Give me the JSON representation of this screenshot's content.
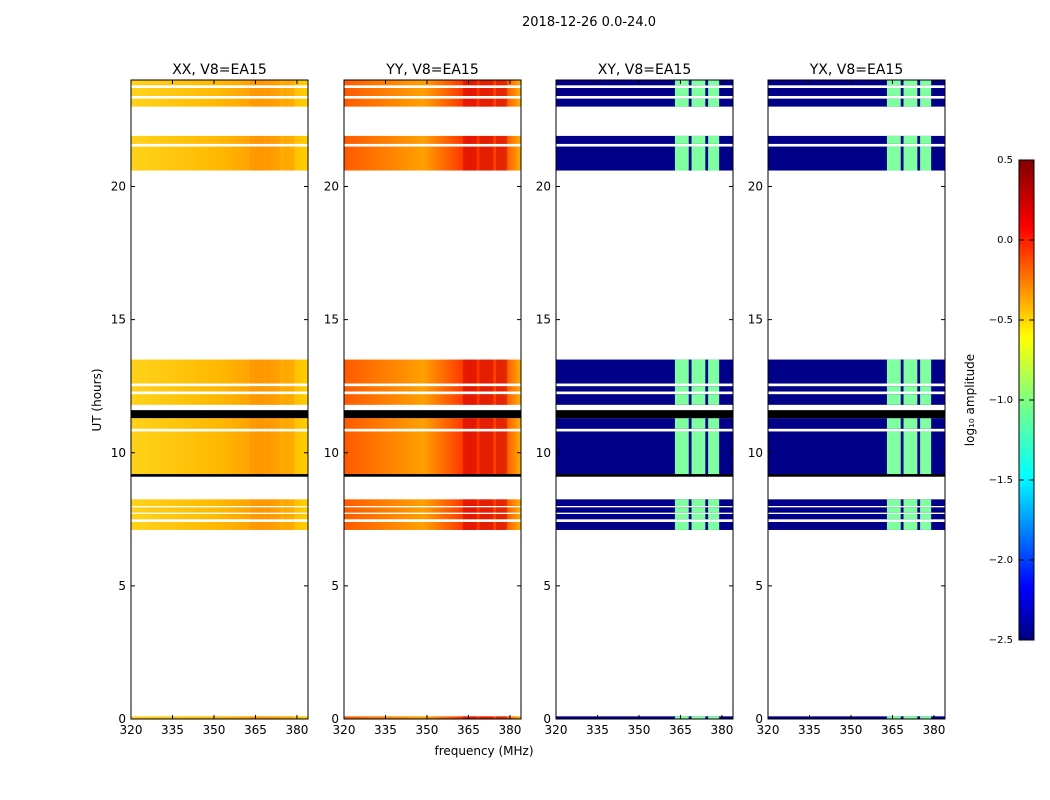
{
  "chart_data": {
    "type": "heatmap",
    "suptitle": "2018-12-26 0.0-24.0",
    "xlabel": "frequency (MHz)",
    "ylabel": "UT (hours)",
    "xlim": [
      320,
      384
    ],
    "ylim": [
      0,
      24
    ],
    "xticks": [
      320,
      335,
      350,
      365,
      380
    ],
    "yticks": [
      0,
      5,
      10,
      15,
      20
    ],
    "panels": [
      {
        "title": "XX, V8=EA15",
        "kind": "parallel",
        "level": 0
      },
      {
        "title": "YY, V8=EA15",
        "kind": "parallel",
        "level": 1
      },
      {
        "title": "XY, V8=EA15",
        "kind": "cross",
        "level": 0
      },
      {
        "title": "YX, V8=EA15",
        "kind": "cross",
        "level": 0
      }
    ],
    "data_blocks_hours": [
      [
        0.0,
        0.1
      ],
      [
        7.1,
        7.4
      ],
      [
        7.5,
        7.7
      ],
      [
        7.75,
        7.95
      ],
      [
        8.0,
        8.25
      ],
      [
        9.2,
        10.8
      ],
      [
        10.9,
        11.3
      ],
      [
        11.8,
        12.2
      ],
      [
        12.3,
        12.5
      ],
      [
        12.6,
        13.5
      ],
      [
        20.6,
        21.5
      ],
      [
        21.6,
        21.9
      ],
      [
        23.0,
        23.3
      ],
      [
        23.4,
        23.7
      ],
      [
        23.8,
        24.0
      ]
    ],
    "masked_black_hours": [
      [
        11.3,
        11.6
      ],
      [
        9.1,
        9.2
      ]
    ],
    "rfi_bands_mhz": [
      [
        363,
        368
      ],
      [
        369,
        374
      ],
      [
        375,
        379
      ]
    ],
    "colorbar": {
      "label": "log₁₀ amplitude",
      "range": [
        -2.5,
        0.5
      ],
      "ticks": [
        "0.5",
        "0.0",
        "−0.5",
        "−1.0",
        "−1.5",
        "−2.0",
        "−2.5"
      ],
      "colormap": "jet"
    }
  }
}
